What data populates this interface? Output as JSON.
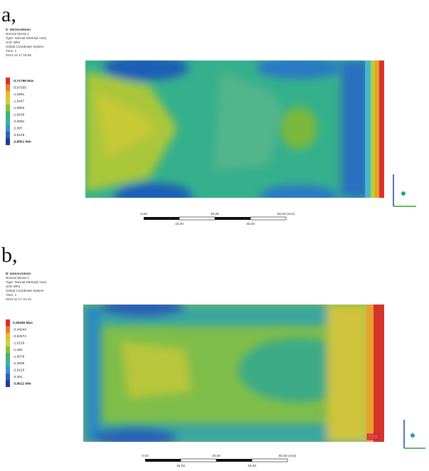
{
  "panels": [
    {
      "label": "a,",
      "header": [
        "E: 56mmx56mm",
        "Normal Stress 2",
        "Type: Normal Stress(Z Axis)",
        "Unit: MPa",
        "Global Coordinate System",
        "Time: 1",
        "2014-11-17 18:45"
      ],
      "legend": [
        "-0,71798 Max",
        "-0,97355",
        "-1,2991",
        "-1,6447",
        "-1,6903",
        "-1,9159",
        "-2,0554",
        "-2,387",
        "-2,6125",
        "-2,8501 Min"
      ],
      "scale_top": [
        "0,00",
        "30,00",
        "60,00 (mm)"
      ],
      "scale_bottom": [
        "15,00",
        "45,00"
      ]
    },
    {
      "label": "b,",
      "header": [
        "B: 64mmx34mm",
        "Normal Stress 2",
        "Type: Normal Stress(Z Axis)",
        "Unit: MPa",
        "Global Coordinate System",
        "Time: 1",
        "2014-11-17 21:44"
      ],
      "legend": [
        "0,45266 Max",
        "-0,44244",
        "-0,53374",
        "-1,0128",
        "-1,460",
        "-1,9078",
        "-2,4038",
        "-2,9120",
        "-3,361",
        "-3,8612 Min"
      ],
      "scale_top": [
        "0,00",
        "30,00",
        "60,00 (mm)"
      ],
      "scale_bottom": [
        "15,00",
        "45,00"
      ]
    }
  ]
}
